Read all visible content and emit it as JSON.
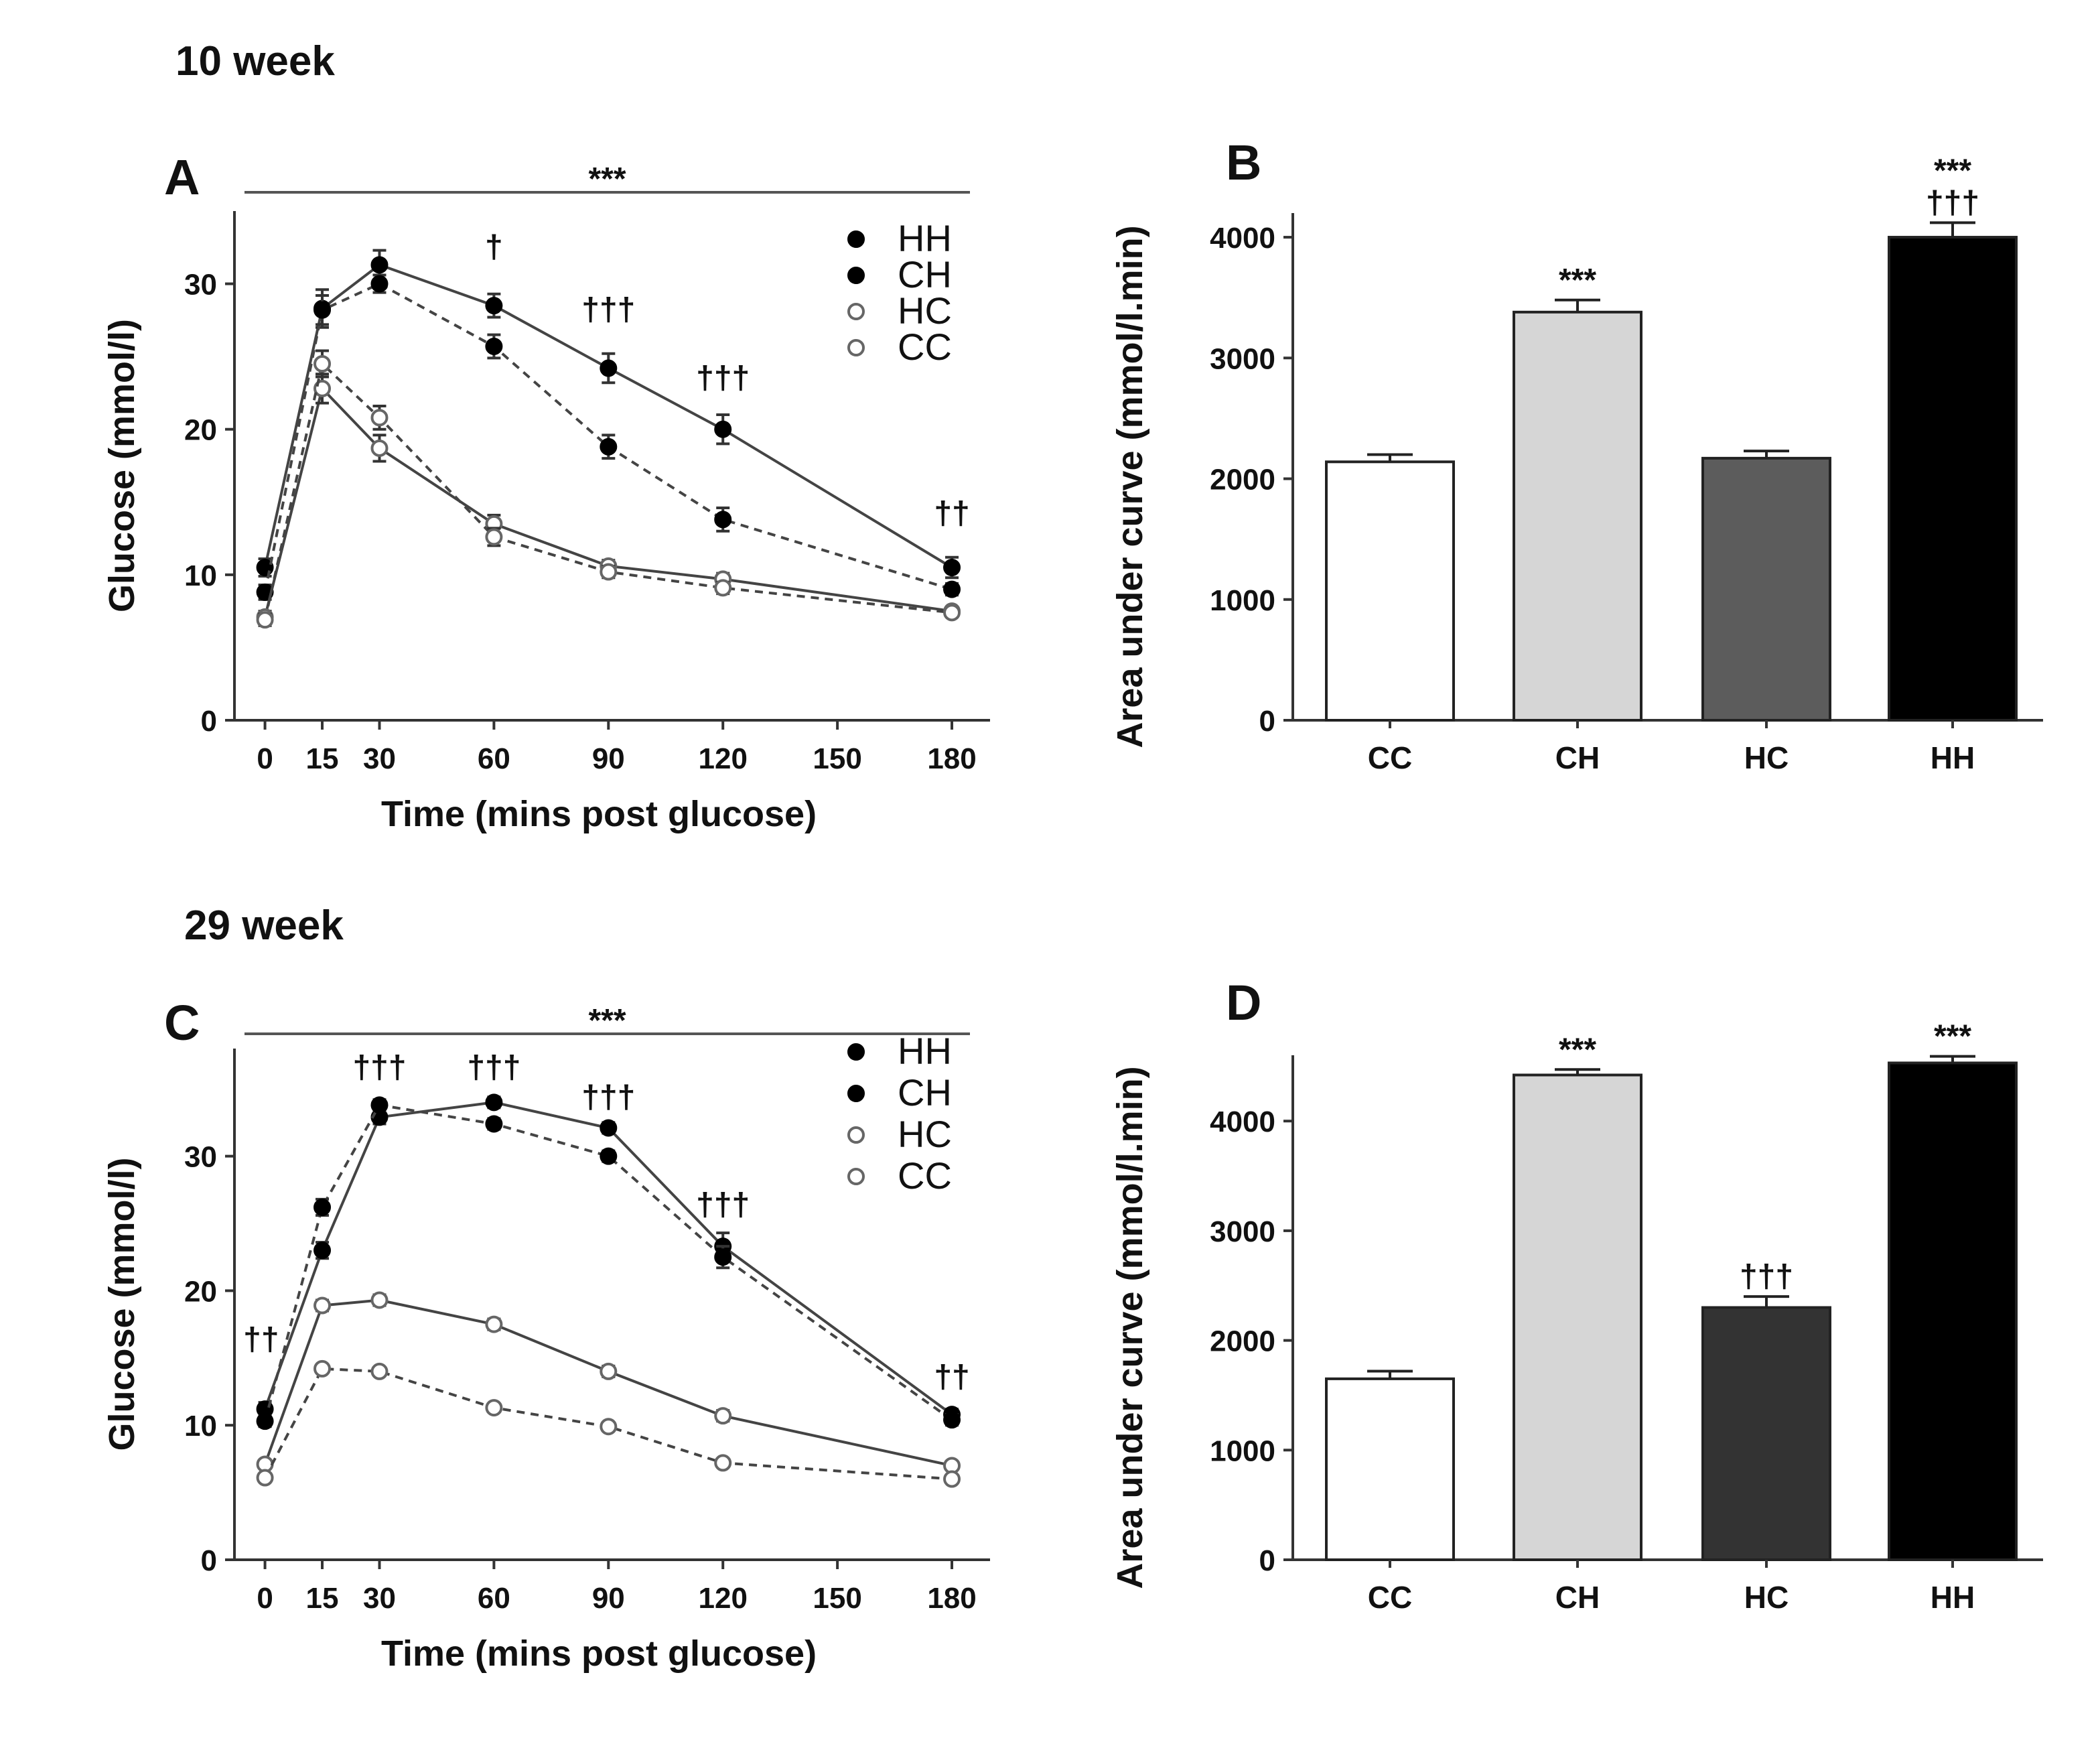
{
  "figure": {
    "week_titles": [
      "10 week",
      "29 week"
    ]
  },
  "chart_data": [
    {
      "panel": "A",
      "type": "line",
      "title": "10 week",
      "xlabel": "Time  (mins post glucose)",
      "ylabel": "Glucose (mmol/l)",
      "x": [
        0,
        15,
        30,
        60,
        90,
        120,
        180
      ],
      "x_ticks": [
        0,
        15,
        30,
        60,
        90,
        120,
        150,
        180
      ],
      "xlim": [
        -8,
        190
      ],
      "ylim": [
        0,
        35
      ],
      "y_ticks": [
        0,
        10,
        20,
        30
      ],
      "legend_position": "top-right",
      "series": [
        {
          "name": "HH",
          "marker": "filled",
          "line": "solid",
          "values": [
            10.5,
            28.3,
            31.3,
            28.5,
            24.2,
            20.0,
            10.5
          ],
          "errors": [
            0.6,
            1.3,
            1.0,
            0.8,
            1.0,
            1.0,
            0.7
          ]
        },
        {
          "name": "CH",
          "marker": "filled",
          "line": "dashed",
          "values": [
            8.8,
            28.2,
            30.0,
            25.7,
            18.8,
            13.8,
            9.0
          ],
          "errors": [
            0.5,
            1.0,
            0.6,
            0.8,
            0.8,
            0.8,
            0.4
          ]
        },
        {
          "name": "HC",
          "marker": "open",
          "line": "solid",
          "values": [
            7.1,
            22.8,
            18.7,
            13.5,
            10.6,
            9.7,
            7.5
          ],
          "errors": [
            0.4,
            1.0,
            0.9,
            0.6,
            0.4,
            0.4,
            0.3
          ]
        },
        {
          "name": "CC",
          "marker": "open",
          "line": "dashed",
          "values": [
            6.9,
            24.5,
            20.8,
            12.6,
            10.2,
            9.1,
            7.4
          ],
          "errors": [
            0.4,
            0.9,
            0.8,
            0.6,
            0.4,
            0.4,
            0.3
          ]
        }
      ],
      "significance_bar": "***",
      "annotations": [
        {
          "x": 60,
          "y": 31.8,
          "text": "†"
        },
        {
          "x": 90,
          "y": 27.5,
          "text": "†††"
        },
        {
          "x": 120,
          "y": 22.8,
          "text": "†††"
        },
        {
          "x": 180,
          "y": 13.5,
          "text": "††"
        }
      ]
    },
    {
      "panel": "B",
      "type": "bar",
      "ylabel": "Area under curve (mmol/l.min)",
      "categories": [
        "CC",
        "CH",
        "HC",
        "HH"
      ],
      "values": [
        2140,
        3380,
        2170,
        4000
      ],
      "errors": [
        60,
        100,
        60,
        120
      ],
      "colors": [
        "#ffffff",
        "#d6d6d6",
        "#5c5c5c",
        "#000000"
      ],
      "ylim": [
        0,
        4200
      ],
      "y_ticks": [
        0,
        1000,
        2000,
        3000,
        4000
      ],
      "annotations": [
        {
          "category": "CH",
          "lines": [
            "***"
          ]
        },
        {
          "category": "HH",
          "lines": [
            "***",
            "†††"
          ]
        }
      ]
    },
    {
      "panel": "C",
      "type": "line",
      "title": "29 week",
      "xlabel": "Time  (mins post glucose)",
      "ylabel": "Glucose (mmol/l)",
      "x": [
        0,
        15,
        30,
        60,
        90,
        120,
        180
      ],
      "x_ticks": [
        0,
        15,
        30,
        60,
        90,
        120,
        150,
        180
      ],
      "xlim": [
        -8,
        190
      ],
      "ylim": [
        0,
        38
      ],
      "y_ticks": [
        0,
        10,
        20,
        30
      ],
      "legend_position": "top-right",
      "series": [
        {
          "name": "HH",
          "marker": "filled",
          "line": "solid",
          "values": [
            11.2,
            23.0,
            32.9,
            34.0,
            32.1,
            23.3,
            10.8
          ],
          "errors": [
            0.5,
            0.6,
            0.5,
            0.4,
            0.4,
            1.0,
            0.4
          ]
        },
        {
          "name": "CH",
          "marker": "filled",
          "line": "dashed",
          "values": [
            10.3,
            26.2,
            33.8,
            32.4,
            30.0,
            22.5,
            10.4
          ],
          "errors": [
            0.4,
            0.6,
            0.4,
            0.4,
            0.4,
            0.8,
            0.4
          ]
        },
        {
          "name": "HC",
          "marker": "open",
          "line": "solid",
          "values": [
            7.1,
            18.9,
            19.3,
            17.5,
            14.0,
            10.7,
            7.0
          ],
          "errors": [
            0.3,
            0.4,
            0.4,
            0.4,
            0.4,
            0.4,
            0.3
          ]
        },
        {
          "name": "CC",
          "marker": "open",
          "line": "dashed",
          "values": [
            6.1,
            14.2,
            14.0,
            11.3,
            9.9,
            7.2,
            6.0
          ],
          "errors": [
            0.3,
            0.3,
            0.3,
            0.3,
            0.3,
            0.3,
            0.3
          ]
        }
      ],
      "significance_bar": "***",
      "annotations": [
        {
          "x": -1,
          "y": 15.6,
          "text": "††"
        },
        {
          "x": 30,
          "y": 35.8,
          "text": "†††"
        },
        {
          "x": 60,
          "y": 35.8,
          "text": "†††"
        },
        {
          "x": 90,
          "y": 33.6,
          "text": "†††"
        },
        {
          "x": 120,
          "y": 25.6,
          "text": "†††"
        },
        {
          "x": 180,
          "y": 12.8,
          "text": "††"
        }
      ]
    },
    {
      "panel": "D",
      "type": "bar",
      "ylabel": "Area under curve (mmol/l.min)",
      "categories": [
        "CC",
        "CH",
        "HC",
        "HH"
      ],
      "values": [
        1650,
        4420,
        2300,
        4530
      ],
      "errors": [
        70,
        50,
        100,
        60
      ],
      "colors": [
        "#ffffff",
        "#d6d6d6",
        "#333333",
        "#000000"
      ],
      "ylim": [
        0,
        4600
      ],
      "y_ticks": [
        0,
        1000,
        2000,
        3000,
        4000
      ],
      "annotations": [
        {
          "category": "CH",
          "lines": [
            "***"
          ]
        },
        {
          "category": "HC",
          "lines": [
            "†††"
          ]
        },
        {
          "category": "HH",
          "lines": [
            "***"
          ]
        }
      ]
    }
  ]
}
